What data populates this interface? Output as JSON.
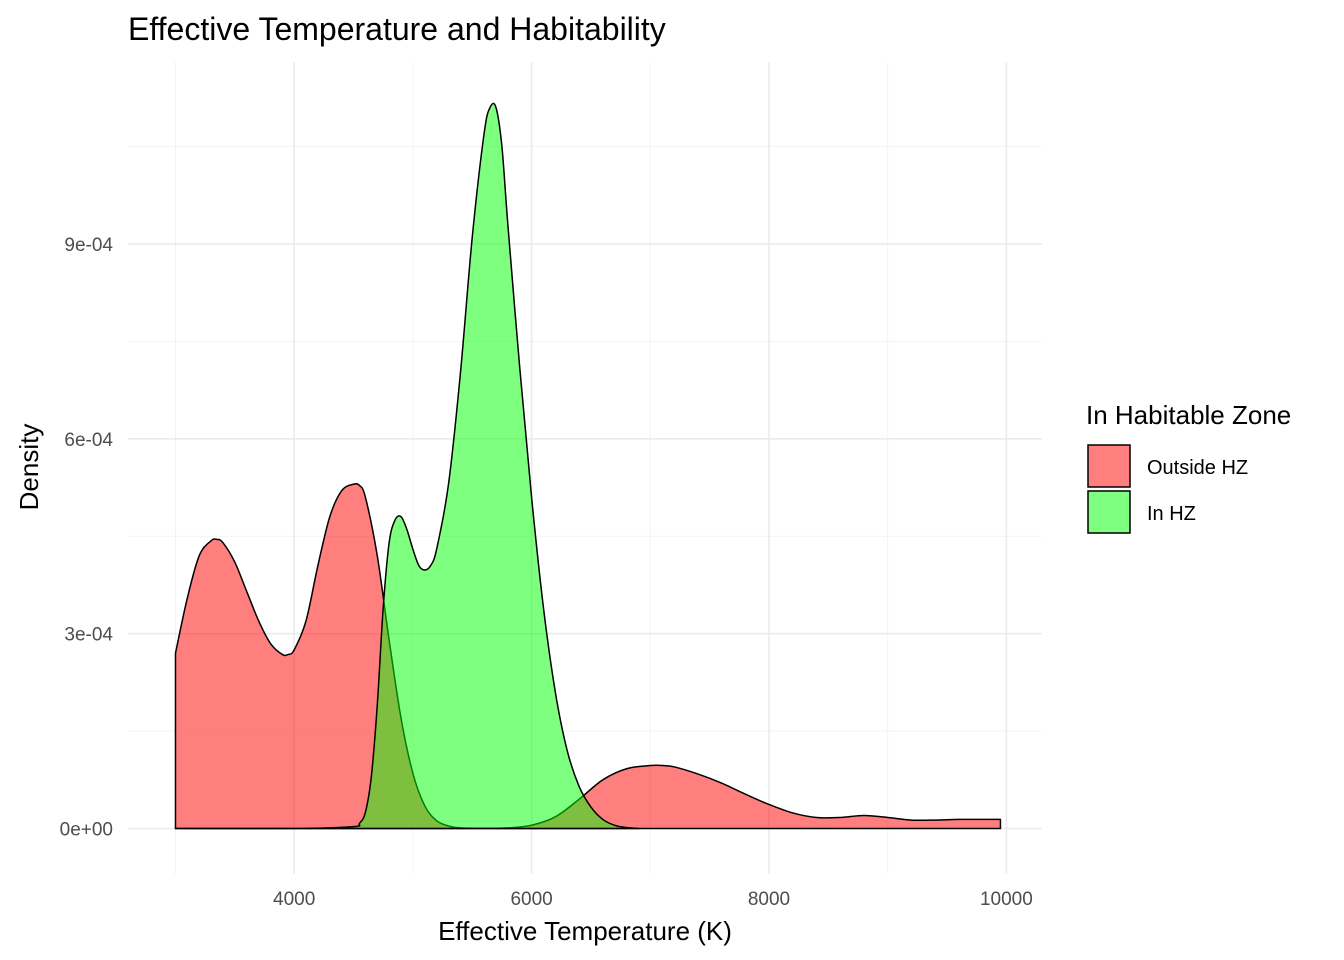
{
  "chart_data": {
    "type": "area",
    "subtype": "density",
    "title": "Effective Temperature and Habitability",
    "xlabel": "Effective Temperature (K)",
    "ylabel": "Density",
    "xlim": [
      2600,
      10300
    ],
    "ylim": [
      -7e-05,
      0.00118
    ],
    "x_ticks": [
      4000,
      6000,
      8000,
      10000
    ],
    "x_tick_labels": [
      "4000",
      "6000",
      "8000",
      "10000"
    ],
    "y_ticks": [
      0,
      0.0003,
      0.0006,
      0.0009
    ],
    "y_tick_labels": [
      "0e+00",
      "3e-04",
      "6e-04",
      "9e-04"
    ],
    "grid": true,
    "legend": {
      "title": "In Habitable Zone",
      "position": "right",
      "entries": [
        {
          "label": "Outside HZ",
          "color": "#ff0000",
          "alpha": 0.5
        },
        {
          "label": "In HZ",
          "color": "#00ff00",
          "alpha": 0.5
        }
      ]
    },
    "series": [
      {
        "name": "Outside HZ",
        "color": "#ff0000",
        "alpha": 0.5,
        "x": [
          3000,
          3100,
          3200,
          3300,
          3350,
          3400,
          3500,
          3600,
          3700,
          3800,
          3900,
          3950,
          4000,
          4100,
          4200,
          4300,
          4400,
          4500,
          4550,
          4600,
          4700,
          4800,
          4900,
          5000,
          5100,
          5200,
          5300,
          5400,
          5600,
          5800,
          6000,
          6200,
          6400,
          6600,
          6800,
          7000,
          7100,
          7200,
          7400,
          7600,
          7800,
          8000,
          8200,
          8400,
          8600,
          8800,
          9000,
          9200,
          9400,
          9600,
          9800,
          9950
        ],
        "y": [
          0.00027,
          0.000355,
          0.00042,
          0.000443,
          0.000445,
          0.00044,
          0.00041,
          0.000365,
          0.00032,
          0.000285,
          0.000268,
          0.000268,
          0.000275,
          0.00032,
          0.000405,
          0.00048,
          0.00052,
          0.00053,
          0.000528,
          0.00051,
          0.00042,
          0.00029,
          0.00017,
          8.5e-05,
          3.5e-05,
          1.2e-05,
          4e-06,
          1e-06,
          5e-07,
          1e-06,
          5e-06,
          1.8e-05,
          4.5e-05,
          7.5e-05,
          9.2e-05,
          9.7e-05,
          9.7e-05,
          9.5e-05,
          8.4e-05,
          7e-05,
          5.3e-05,
          3.7e-05,
          2.4e-05,
          1.7e-05,
          1.7e-05,
          2e-05,
          1.7e-05,
          1.3e-05,
          1.3e-05,
          1.4e-05,
          1.4e-05,
          1.4e-05
        ]
      },
      {
        "name": "In HZ",
        "color": "#00ff00",
        "alpha": 0.5,
        "x": [
          3000,
          4000,
          4500,
          4550,
          4600,
          4650,
          4700,
          4750,
          4800,
          4850,
          4900,
          4950,
          5000,
          5050,
          5100,
          5150,
          5200,
          5300,
          5400,
          5500,
          5600,
          5650,
          5700,
          5750,
          5800,
          5900,
          6000,
          6100,
          6200,
          6300,
          6400,
          6500,
          6600,
          6700,
          6800,
          6900
        ],
        "y": [
          0,
          0,
          3e-06,
          8e-06,
          2.5e-05,
          8e-05,
          0.00019,
          0.00034,
          0.00044,
          0.000475,
          0.00048,
          0.00046,
          0.00043,
          0.000405,
          0.000398,
          0.000405,
          0.00043,
          0.00053,
          0.0007,
          0.00091,
          0.00107,
          0.00111,
          0.00111,
          0.00105,
          0.00093,
          0.00071,
          0.00051,
          0.00034,
          0.00021,
          0.00012,
          6.5e-05,
          3.3e-05,
          1.4e-05,
          5e-06,
          1.5e-06,
          0
        ]
      }
    ]
  }
}
